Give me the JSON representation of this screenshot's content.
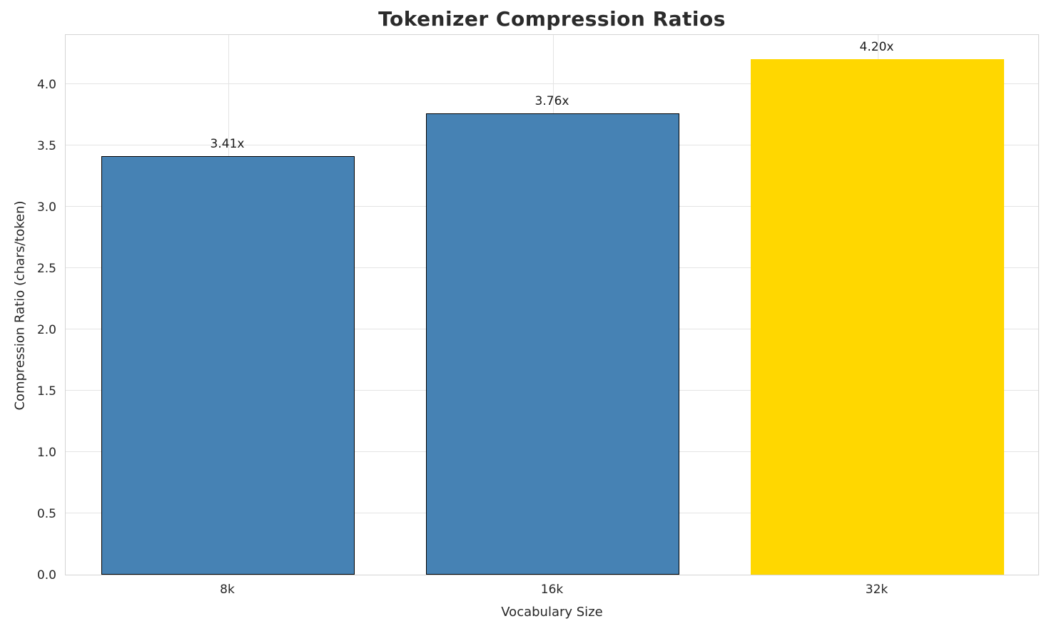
{
  "title": "Tokenizer Compression Ratios",
  "chart_data": {
    "type": "bar",
    "title": "Tokenizer Compression Ratios",
    "xlabel": "Vocabulary Size",
    "ylabel": "Compression Ratio (chars/token)",
    "categories": [
      "8k",
      "16k",
      "32k"
    ],
    "values": [
      3.41,
      3.76,
      4.2
    ],
    "value_labels": [
      "3.41x",
      "3.76x",
      "4.20x"
    ],
    "bar_colors": [
      "#4682b4",
      "#4682b4",
      "#ffd700"
    ],
    "bar_edge_colors": [
      "#000000",
      "#000000",
      "#ffd700"
    ],
    "ylim": [
      0,
      4.41
    ],
    "yticks": [
      0.0,
      0.5,
      1.0,
      1.5,
      2.0,
      2.5,
      3.0,
      3.5,
      4.0
    ],
    "grid": true,
    "legend_position": "none"
  }
}
